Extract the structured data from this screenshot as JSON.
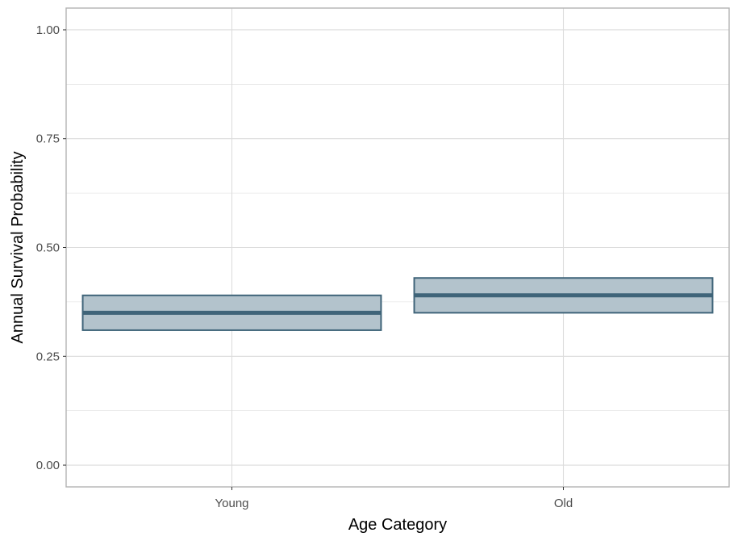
{
  "chart_data": {
    "type": "crossbar",
    "categories": [
      "Young",
      "Old"
    ],
    "estimates": [
      0.35,
      0.39
    ],
    "lower": [
      0.31,
      0.35
    ],
    "upper": [
      0.39,
      0.43
    ],
    "xlabel": "Age Category",
    "ylabel": "Annual Survival Probability",
    "ylim": [
      -0.05,
      1.05
    ],
    "yticks": [
      0.0,
      0.25,
      0.5,
      0.75,
      1.0
    ],
    "ytick_labels": [
      "0.00",
      "0.25",
      "0.50",
      "0.75",
      "1.00"
    ],
    "grid": true,
    "colors": {
      "box_fill": "#b3c3cc",
      "box_stroke": "#3f6479",
      "grid": "#dcdcdc",
      "panel_border": "#b3b3b3"
    }
  }
}
